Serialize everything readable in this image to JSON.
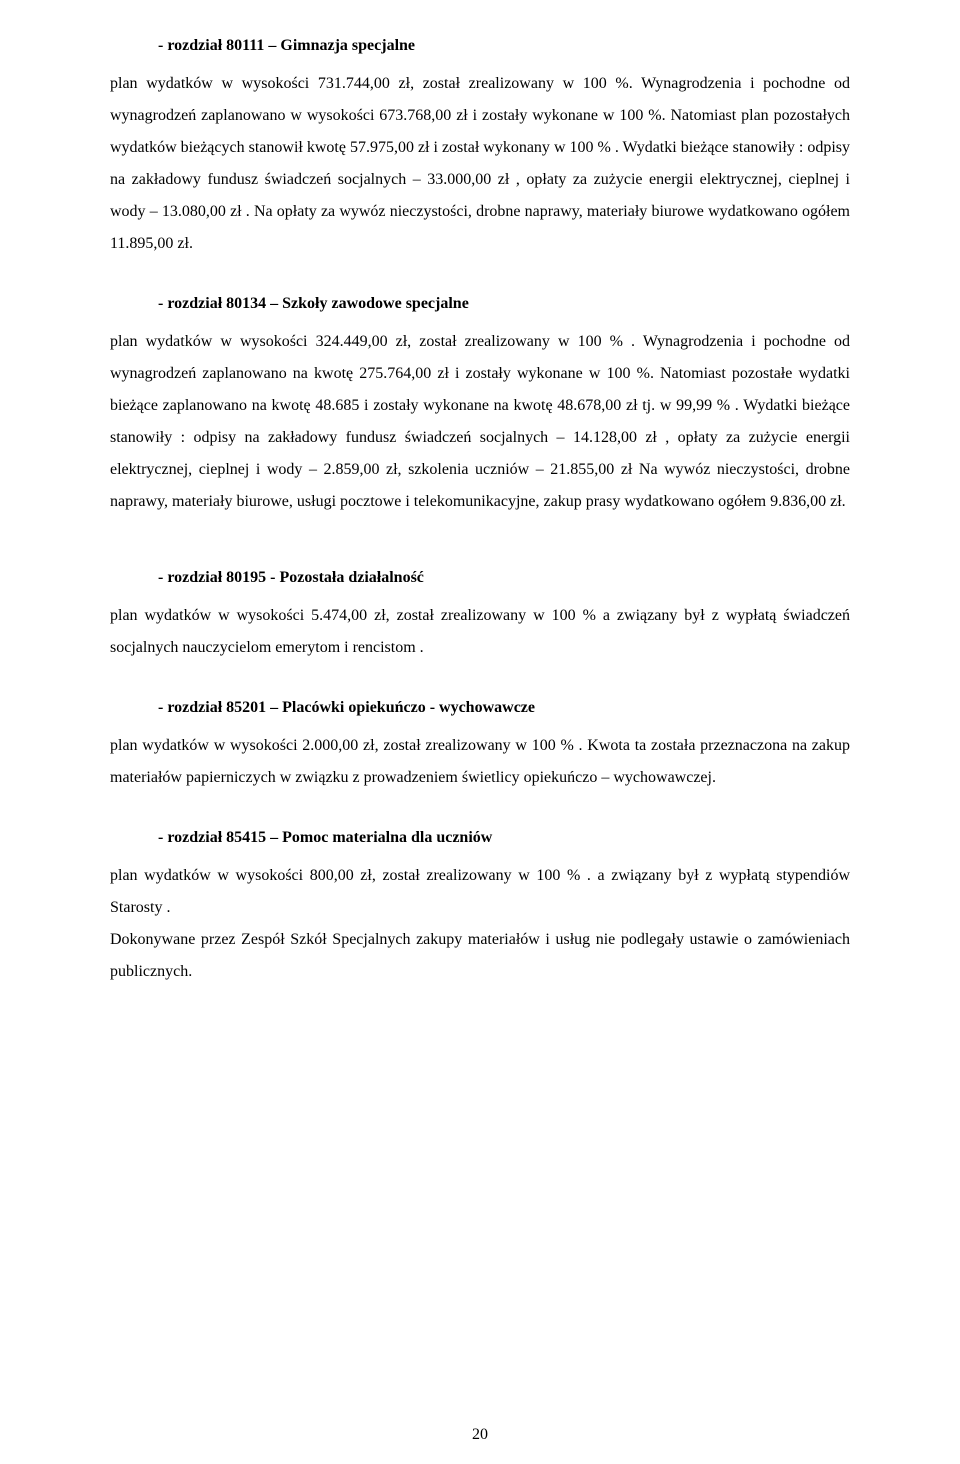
{
  "sections": {
    "s1": {
      "heading": "- rozdział 80111 – Gimnazja specjalne",
      "body": "plan wydatków w wysokości 731.744,00 zł, został zrealizowany w 100 %. Wynagrodzenia i pochodne od wynagrodzeń zaplanowano w wysokości 673.768,00 zł i zostały wykonane w 100 %. Natomiast plan  pozostałych wydatków bieżących stanowił kwotę  57.975,00 zł i został wykonany w 100 % .  Wydatki bieżące stanowiły : odpisy na zakładowy fundusz świadczeń socjalnych – 33.000,00 zł , opłaty za zużycie energii elektrycznej, cieplnej i wody – 13.080,00 zł . Na opłaty za wywóz nieczystości, drobne naprawy,  materiały biurowe  wydatkowano ogółem  11.895,00 zł."
    },
    "s2": {
      "heading": "- rozdział 80134 – Szkoły zawodowe specjalne",
      "body": "plan wydatków w wysokości  324.449,00 zł, został zrealizowany w  100 % . Wynagrodzenia i pochodne od wynagrodzeń zaplanowano na kwotę  275.764,00 zł i  zostały wykonane w 100 %. Natomiast pozostałe wydatki bieżące zaplanowano na kwotę 48.685 i zostały wykonane na kwotę  48.678,00 zł  tj. w 99,99 % .  Wydatki bieżące stanowiły : odpisy na zakładowy fundusz świadczeń socjalnych – 14.128,00 zł , opłaty za zużycie energii elektrycznej, cieplnej i wody – 2.859,00 zł, szkolenia uczniów – 21.855,00 zł  Na  wywóz nieczystości, drobne naprawy, materiały biurowe, usługi pocztowe i telekomunikacyjne, zakup prasy wydatkowano ogółem   9.836,00 zł."
    },
    "s3": {
      "heading": "- rozdział 80195 - Pozostała działalność",
      "body": "plan wydatków w wysokości  5.474,00 zł,  został zrealizowany w 100 %  a związany był z wypłatą świadczeń socjalnych nauczycielom  emerytom i rencistom ."
    },
    "s4": {
      "heading": "- rozdział 85201 – Placówki opiekuńczo - wychowawcze",
      "body": "plan wydatków w wysokości  2.000,00 zł, został zrealizowany w 100 % . Kwota ta została przeznaczona na zakup materiałów papierniczych w związku z prowadzeniem świetlicy opiekuńczo – wychowawczej."
    },
    "s5": {
      "heading": "- rozdział 85415 – Pomoc materialna dla uczniów",
      "body1": "plan wydatków w wysokości  800,00 zł,  został zrealizowany w 100 % . a związany był z wypłatą stypendiów Starosty .",
      "body2": "Dokonywane przez Zespół Szkół Specjalnych zakupy materiałów i usług nie podlegały ustawie o zamówieniach publicznych."
    }
  },
  "pageNumber": "20"
}
